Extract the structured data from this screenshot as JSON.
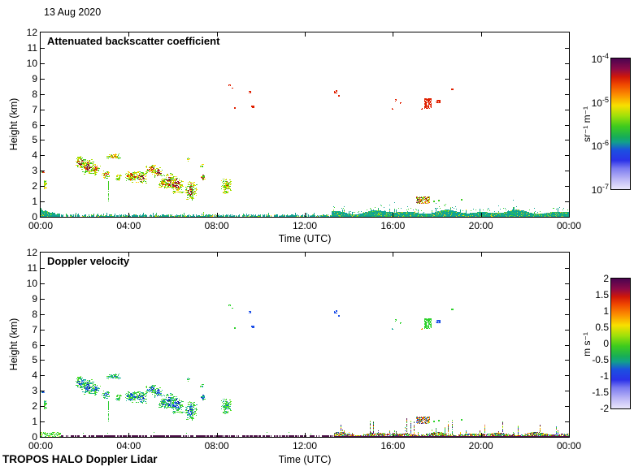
{
  "header": {
    "date": "13 Aug 2020"
  },
  "footer": {
    "instrument": "TROPOS HALO Doppler Lidar"
  },
  "figure": {
    "background": "#ffffff",
    "axis_color": "#000000"
  },
  "chart_data": [
    {
      "type": "heatmap",
      "title": "Attenuated backscatter coefficient",
      "xlabel": "Time (UTC)",
      "ylabel": "Height (km)",
      "x_ticks": [
        "00:00",
        "04:00",
        "08:00",
        "12:00",
        "16:00",
        "20:00",
        "00:00"
      ],
      "x_range_hours": [
        0,
        24
      ],
      "y_ticks": [
        0,
        1,
        2,
        3,
        4,
        5,
        6,
        7,
        8,
        9,
        10,
        11,
        12
      ],
      "y_range_km": [
        0,
        12
      ],
      "grid": false,
      "colorbar": {
        "scale": "log",
        "tick_labels": [
          {
            "base": "10",
            "exp": "-4"
          },
          {
            "base": "10",
            "exp": "-5"
          },
          {
            "base": "10",
            "exp": "-6"
          },
          {
            "base": "10",
            "exp": "-7"
          }
        ],
        "units": "sr⁻¹ m⁻¹",
        "range": [
          "1e-7",
          "1e-4"
        ]
      },
      "boundary_layer_mode": "aerosol",
      "palettes": {
        "cluster_core": [
          "#d42400",
          "#e84d00",
          "#c01330"
        ],
        "cluster_core_strong": [
          "#8a0f3c",
          "#d42400",
          "#6e0f3c"
        ],
        "cluster_core_warm": [
          "#f07c00",
          "#ffc800",
          "#e84d00"
        ],
        "cluster_core_green": [
          "#3fcc20",
          "#a8e000",
          "#d42400"
        ],
        "cluster_fringe": [
          "#ffd400",
          "#a8e000",
          "#3fcc20"
        ],
        "speck": "#e02000",
        "speck_map": {
          "green": "#e02000",
          "blue": "#e02000",
          "teal": "#e02000",
          "orange": "#e02000"
        },
        "patch": [
          "#d42400",
          "#ffd400",
          "#3fcc20",
          "#6e0f3c",
          "#f07c00",
          "#a8e000"
        ],
        "streak": "#3fcc20",
        "dot": "#3fcc20",
        "bl_line": "#12a292",
        "bl_speckle": [
          [
            "#12a292",
            0.78
          ],
          [
            "#3fd42c",
            0.12
          ],
          [
            "#a8e02a",
            0.06
          ],
          [
            "#ffd400",
            0.04
          ]
        ]
      }
    },
    {
      "type": "heatmap",
      "title": "Doppler velocity",
      "xlabel": "Time (UTC)",
      "ylabel": "Height (km)",
      "x_ticks": [
        "00:00",
        "04:00",
        "08:00",
        "12:00",
        "16:00",
        "20:00",
        "00:00"
      ],
      "x_range_hours": [
        0,
        24
      ],
      "y_ticks": [
        0,
        1,
        2,
        3,
        4,
        5,
        6,
        7,
        8,
        9,
        10,
        11,
        12
      ],
      "y_range_km": [
        0,
        12
      ],
      "grid": false,
      "colorbar": {
        "scale": "linear",
        "tick_labels": [
          {
            "base": "2"
          },
          {
            "base": "1.5"
          },
          {
            "base": "1"
          },
          {
            "base": "0.5"
          },
          {
            "base": "0"
          },
          {
            "base": "-0.5"
          },
          {
            "base": "-1"
          },
          {
            "base": "-1.5"
          },
          {
            "base": "-2"
          }
        ],
        "units": "m s⁻¹",
        "range": [
          -2,
          2
        ]
      },
      "boundary_layer_mode": "velocity",
      "palettes": {
        "cluster_core": [
          "#1d50e8",
          "#2f74f0",
          "#0c30c0"
        ],
        "cluster_core_strong": [
          "#0a1ea8",
          "#1d50e8",
          "#2f74f0"
        ],
        "cluster_core_warm": [
          "#16a89a",
          "#2ecc35",
          "#1d50e8"
        ],
        "cluster_core_green": [
          "#2ed22c",
          "#58e026",
          "#1d50e8"
        ],
        "cluster_fringe": [
          "#2ecc35",
          "#58e026",
          "#19b09a"
        ],
        "speck": "#2ed22c",
        "speck_map": {
          "green": "#2ed22c",
          "blue": "#1d50e8",
          "teal": "#16a89a",
          "orange": "#f09000"
        },
        "patch": [
          "#2ed22c",
          "#ffd400",
          "#d42400",
          "#1d50e8",
          "#5a1450",
          "#f09000"
        ],
        "streak": "#2ecc35",
        "dot": "#2ed22c",
        "bl_line": "#4c1048",
        "bl_speckle": [
          [
            "#2ed22c",
            0.3
          ],
          [
            "#ffe000",
            0.14
          ],
          [
            "#d42400",
            0.12
          ],
          [
            "#1d50e8",
            0.1
          ],
          [
            "#5a1450",
            0.16
          ],
          [
            "#16a89a",
            0.08
          ],
          [
            "#f09000",
            0.1
          ]
        ]
      }
    }
  ],
  "colormap": {
    "stops": [
      [
        0,
        "#4a0450"
      ],
      [
        8,
        "#8c0a48"
      ],
      [
        14,
        "#d01708"
      ],
      [
        20,
        "#f04800"
      ],
      [
        28,
        "#fb9000"
      ],
      [
        36,
        "#f8e000"
      ],
      [
        44,
        "#9fe00a"
      ],
      [
        52,
        "#3ecb1d"
      ],
      [
        60,
        "#17ad57"
      ],
      [
        64,
        "#12a08c"
      ],
      [
        70,
        "#1b50e0"
      ],
      [
        78,
        "#2b32e8"
      ],
      [
        84,
        "#7b7bf0"
      ],
      [
        92,
        "#b9b4f5"
      ],
      [
        100,
        "#eae6fb"
      ]
    ]
  },
  "lidar_features": {
    "descending_layer": {
      "clusters": [
        [
          0.08,
          2.9,
          2,
          4,
          0
        ],
        [
          0.18,
          2.15,
          3,
          10,
          2
        ],
        [
          1.8,
          3.55,
          9,
          12,
          1
        ],
        [
          2.12,
          3.3,
          11,
          14,
          1
        ],
        [
          2.48,
          3.1,
          8,
          9,
          0
        ],
        [
          3.3,
          3.95,
          13,
          5,
          3
        ],
        [
          2.95,
          2.75,
          7,
          7,
          0
        ],
        [
          3.55,
          2.55,
          6,
          6,
          2
        ],
        [
          4.1,
          2.65,
          12,
          10,
          0
        ],
        [
          4.55,
          2.6,
          10,
          11,
          1
        ],
        [
          5.0,
          3.1,
          9,
          8,
          0
        ],
        [
          5.3,
          2.9,
          9,
          9,
          1
        ],
        [
          5.55,
          2.2,
          8,
          8,
          0
        ],
        [
          5.8,
          2.35,
          10,
          13,
          1
        ],
        [
          6.15,
          2.1,
          11,
          15,
          1
        ],
        [
          6.8,
          1.75,
          10,
          16,
          1
        ],
        [
          6.72,
          3.75,
          3,
          3,
          2
        ],
        [
          7.28,
          3.4,
          3,
          3,
          2
        ],
        [
          7.35,
          2.6,
          5,
          7,
          0
        ],
        [
          8.4,
          2.05,
          9,
          14,
          4
        ]
      ],
      "streaks": [
        [
          3.07,
          0.9,
          2.3
        ],
        [
          6.85,
          1.1,
          1.9
        ]
      ]
    },
    "high_clouds": [
      [
        8.6,
        8.55,
        3,
        2,
        "green"
      ],
      [
        8.72,
        8.35,
        2,
        2,
        "green"
      ],
      [
        9.49,
        8.1,
        3,
        3,
        "blue"
      ],
      [
        8.82,
        7.1,
        2,
        2,
        "green"
      ],
      [
        9.63,
        7.15,
        4,
        3,
        "blue"
      ],
      [
        13.4,
        8.15,
        4,
        4,
        "blue"
      ],
      [
        13.55,
        7.9,
        2,
        2,
        "blue"
      ],
      [
        16.0,
        7.05,
        2,
        2,
        "teal"
      ],
      [
        16.12,
        7.6,
        2,
        3,
        "green"
      ],
      [
        16.35,
        7.4,
        2,
        2,
        "green"
      ],
      [
        17.32,
        7.05,
        2,
        2,
        "orange"
      ],
      [
        17.6,
        7.4,
        9,
        13,
        "green"
      ],
      [
        18.05,
        7.5,
        6,
        4,
        "blue"
      ],
      [
        18.7,
        8.3,
        3,
        2,
        "green"
      ]
    ],
    "low_patch": {
      "t": [
        17.05,
        17.65
      ],
      "h": [
        0.9,
        1.35
      ]
    },
    "low_dots": [
      [
        17.85,
        1.05
      ],
      [
        18.05,
        1.1
      ],
      [
        19.1,
        1.15
      ]
    ],
    "boundary_layer": {
      "early_end": 0.85,
      "thin_end": 13.2
    }
  }
}
